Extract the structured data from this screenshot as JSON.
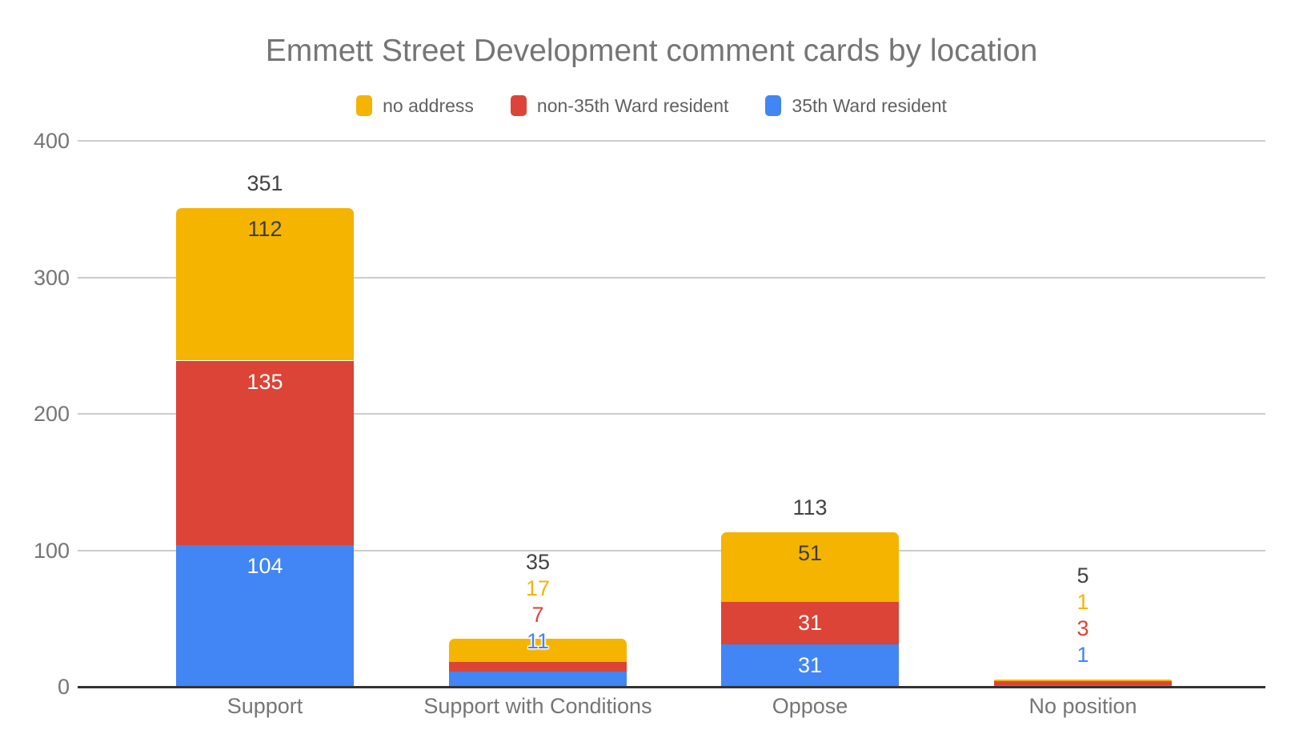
{
  "chart_data": {
    "type": "bar",
    "stacked": true,
    "title": "Emmett Street Development comment cards by location",
    "categories": [
      "Support",
      "Support with Conditions",
      "Oppose",
      "No position"
    ],
    "series": [
      {
        "name": "no address",
        "color": "#F4B400",
        "values": [
          112,
          17,
          51,
          1
        ]
      },
      {
        "name": "non-35th Ward resident",
        "color": "#DB4437",
        "values": [
          135,
          7,
          31,
          3
        ]
      },
      {
        "name": "35th Ward resident",
        "color": "#4285F4",
        "values": [
          104,
          11,
          31,
          1
        ]
      }
    ],
    "stack_order_bottom_to_top": [
      "35th Ward resident",
      "non-35th Ward resident",
      "no address"
    ],
    "totals": [
      351,
      35,
      113,
      5
    ],
    "y_axis": {
      "min": 0,
      "max": 400,
      "ticks": [
        0,
        100,
        200,
        300,
        400
      ]
    },
    "xlabel": "",
    "ylabel": "",
    "grid": true,
    "legend_position": "top",
    "colors": {
      "background": "#FFFFFF",
      "grid_line": "#CCCCCC",
      "axis_line": "#333333",
      "title_text": "#757575",
      "axis_text": "#757575",
      "legend_text": "#616161",
      "total_label_text": "#424242",
      "label_on_yellow": "#3C3C3C",
      "label_on_red_blue": "#FFFFFF"
    }
  }
}
